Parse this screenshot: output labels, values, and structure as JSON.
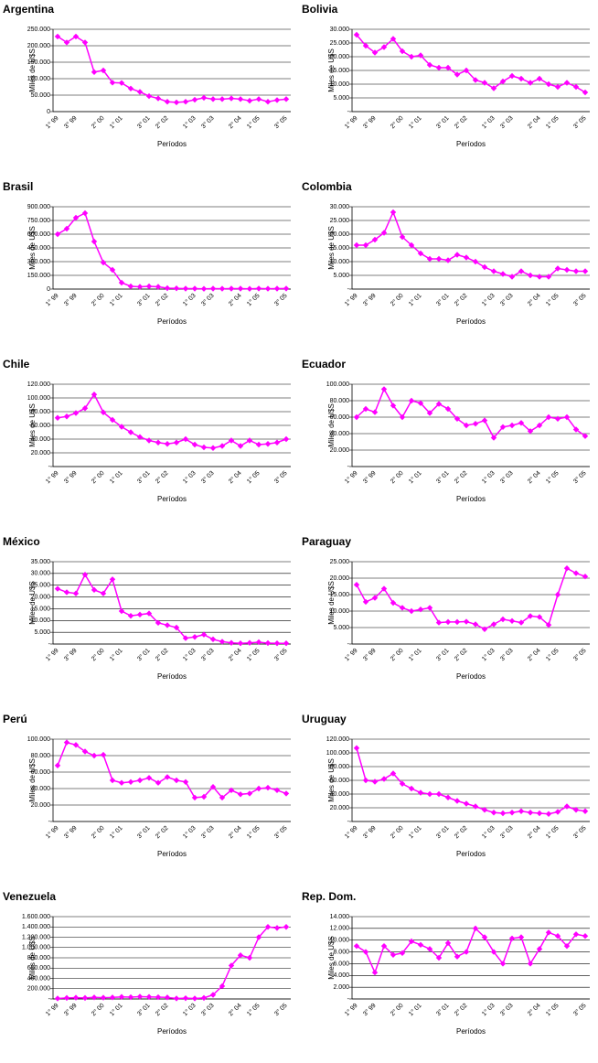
{
  "chart_data": [
    {
      "type": "line",
      "title": "Argentina",
      "y_label": "Miles de U$S",
      "x_label": "Períodos",
      "color": "#ff00ff",
      "grid": true,
      "categories": [
        "1° 99",
        null,
        "3° 99",
        null,
        null,
        "2° 00",
        null,
        "1° 01",
        null,
        null,
        "3° 01",
        null,
        "2° 02",
        null,
        null,
        "1° 03",
        null,
        "3° 03",
        null,
        null,
        "2° 04",
        null,
        "1° 05",
        null,
        null,
        "3° 05"
      ],
      "values": [
        228000,
        210000,
        228000,
        210000,
        120000,
        125000,
        88000,
        87000,
        70000,
        60000,
        47000,
        40000,
        30000,
        28000,
        30000,
        36000,
        42000,
        38000,
        38000,
        40000,
        38000,
        33000,
        38000,
        30000,
        35000,
        38000
      ],
      "ylim": [
        0,
        250000
      ],
      "yticks": [
        0,
        {
          "value": 50000,
          "label": "50.000"
        },
        {
          "value": 100000,
          "label": "100.000"
        },
        {
          "value": 150000,
          "label": "150.000"
        },
        {
          "value": 200000,
          "label": "200.000"
        },
        {
          "value": 250000,
          "label": "250.000"
        }
      ]
    },
    {
      "type": "line",
      "title": "Bolivia",
      "y_label": "Miles de U$S",
      "x_label": "Períodos",
      "color": "#ff00ff",
      "grid": true,
      "categories": [
        "1° 99",
        null,
        "3° 99",
        null,
        null,
        "2° 00",
        null,
        "1° 01",
        null,
        null,
        "3° 01",
        null,
        "2° 02",
        null,
        null,
        "1° 03",
        null,
        "3° 03",
        null,
        null,
        "2° 04",
        null,
        "1° 05",
        null,
        null,
        "3° 05"
      ],
      "values": [
        28000,
        24000,
        21500,
        23500,
        26500,
        22000,
        20000,
        20500,
        17000,
        16000,
        16000,
        13500,
        15000,
        11500,
        10500,
        8500,
        11000,
        13000,
        12000,
        10500,
        12000,
        10000,
        9000,
        10500,
        9000,
        7000
      ],
      "ylim": [
        0,
        30000
      ],
      "yticks": [
        {
          "value": 0,
          "label": "-"
        },
        {
          "value": 5000,
          "label": "5.000"
        },
        {
          "value": 10000,
          "label": "10.000"
        },
        {
          "value": 15000,
          "label": "15.000"
        },
        {
          "value": 20000,
          "label": "20.000"
        },
        {
          "value": 25000,
          "label": "25.000"
        },
        {
          "value": 30000,
          "label": "30.000"
        }
      ]
    },
    {
      "type": "line",
      "title": "Brasil",
      "y_label": "Miles de U$S",
      "x_label": "Períodos",
      "color": "#ff00ff",
      "grid": true,
      "categories": [
        "1° 99",
        null,
        "3° 99",
        null,
        null,
        "2° 00",
        null,
        "1° 01",
        null,
        null,
        "3° 01",
        null,
        "2° 02",
        null,
        null,
        "1° 03",
        null,
        "3° 03",
        null,
        null,
        "2° 04",
        null,
        "1° 05",
        null,
        null,
        "3° 05"
      ],
      "values": [
        600000,
        660000,
        780000,
        830000,
        520000,
        290000,
        210000,
        70000,
        30000,
        25000,
        30000,
        25000,
        10000,
        8000,
        5000,
        5000,
        3000,
        5000,
        4000,
        5000,
        5000,
        3000,
        6000,
        4000,
        5000,
        6000
      ],
      "ylim": [
        0,
        900000
      ],
      "yticks": [
        0,
        {
          "value": 150000,
          "label": "150.000"
        },
        {
          "value": 300000,
          "label": "300.000"
        },
        {
          "value": 450000,
          "label": "450.000"
        },
        {
          "value": 600000,
          "label": "600.000"
        },
        {
          "value": 750000,
          "label": "750.000"
        },
        {
          "value": 900000,
          "label": "900.000"
        }
      ]
    },
    {
      "type": "line",
      "title": "Colombia",
      "y_label": "Miles de U$S",
      "x_label": "Períodos",
      "color": "#ff00ff",
      "grid": true,
      "categories": [
        "1° 99",
        null,
        "3° 99",
        null,
        null,
        "2° 00",
        null,
        "1° 01",
        null,
        null,
        "3° 01",
        null,
        "2° 02",
        null,
        null,
        "1° 03",
        null,
        "3° 03",
        null,
        null,
        "2° 04",
        null,
        "1° 05",
        null,
        null,
        "3° 05"
      ],
      "values": [
        16000,
        16000,
        18000,
        20500,
        28000,
        19000,
        16000,
        13000,
        11000,
        11000,
        10500,
        12500,
        11500,
        10000,
        8000,
        6500,
        5500,
        4500,
        6500,
        5000,
        4500,
        4500,
        7500,
        7000,
        6500,
        6500
      ],
      "ylim": [
        0,
        30000
      ],
      "yticks": [
        {
          "value": 0,
          "label": "-"
        },
        {
          "value": 5000,
          "label": "5.000"
        },
        {
          "value": 10000,
          "label": "10.000"
        },
        {
          "value": 15000,
          "label": "15.000"
        },
        {
          "value": 20000,
          "label": "20.000"
        },
        {
          "value": 25000,
          "label": "25.000"
        },
        {
          "value": 30000,
          "label": "30.000"
        }
      ]
    },
    {
      "type": "line",
      "title": "Chile",
      "y_label": "Miles de U$S",
      "x_label": "Períodos",
      "color": "#ff00ff",
      "grid": true,
      "categories": [
        "1° 99",
        null,
        "3° 99",
        null,
        null,
        "2° 00",
        null,
        "1° 01",
        null,
        null,
        "3° 01",
        null,
        "2° 02",
        null,
        null,
        "1° 03",
        null,
        "3° 03",
        null,
        null,
        "2° 04",
        null,
        "1° 05",
        null,
        null,
        "3° 05"
      ],
      "values": [
        71000,
        73000,
        78000,
        85000,
        105000,
        79000,
        68000,
        58000,
        50000,
        43000,
        38000,
        35000,
        33000,
        35000,
        40000,
        32000,
        28000,
        27000,
        30000,
        38000,
        30000,
        38000,
        32000,
        33000,
        35000,
        40000
      ],
      "ylim": [
        0,
        120000
      ],
      "yticks": [
        {
          "value": 0,
          "label": "-"
        },
        {
          "value": 20000,
          "label": "20.000"
        },
        {
          "value": 40000,
          "label": "40.000"
        },
        {
          "value": 60000,
          "label": "60.000"
        },
        {
          "value": 80000,
          "label": "80.000"
        },
        {
          "value": 100000,
          "label": "100.000"
        },
        {
          "value": 120000,
          "label": "120.000"
        }
      ]
    },
    {
      "type": "line",
      "title": "Ecuador",
      "y_label": "Miles de U$S",
      "x_label": "Períodos",
      "color": "#ff00ff",
      "grid": true,
      "categories": [
        "1° 99",
        null,
        "3° 99",
        null,
        null,
        "2° 00",
        null,
        "1° 01",
        null,
        null,
        "3° 01",
        null,
        "2° 02",
        null,
        null,
        "1° 03",
        null,
        "3° 03",
        null,
        null,
        "2° 04",
        null,
        "1° 05",
        null,
        null,
        "3° 05"
      ],
      "values": [
        60000,
        70000,
        66000,
        94000,
        74000,
        60000,
        80000,
        77000,
        65000,
        76000,
        70000,
        58000,
        50000,
        52000,
        56000,
        35000,
        48000,
        50000,
        53000,
        43000,
        50000,
        60000,
        58000,
        60000,
        45000,
        37000
      ],
      "ylim": [
        0,
        100000
      ],
      "yticks": [
        {
          "value": 0,
          "label": "-"
        },
        {
          "value": 20000,
          "label": "20.000"
        },
        {
          "value": 40000,
          "label": "40.000"
        },
        {
          "value": 60000,
          "label": "60.000"
        },
        {
          "value": 80000,
          "label": "80.000"
        },
        {
          "value": 100000,
          "label": "100.000"
        }
      ]
    },
    {
      "type": "line",
      "title": "México",
      "y_label": "Miles de U$S",
      "x_label": "Períodos",
      "color": "#ff00ff",
      "grid": true,
      "categories": [
        "1° 99",
        null,
        "3° 99",
        null,
        null,
        "2° 00",
        null,
        "1° 01",
        null,
        null,
        "3° 01",
        null,
        "2° 02",
        null,
        null,
        "1° 03",
        null,
        "3° 03",
        null,
        null,
        "2° 04",
        null,
        "1° 05",
        null,
        null,
        "3° 05"
      ],
      "values": [
        23500,
        22000,
        21500,
        29500,
        23000,
        21500,
        27500,
        14000,
        12000,
        12500,
        13000,
        9000,
        8000,
        7000,
        2500,
        3000,
        4000,
        2000,
        1000,
        500,
        300,
        500,
        800,
        400,
        300,
        300
      ],
      "ylim": [
        0,
        35000
      ],
      "yticks": [
        {
          "value": 0,
          "label": "-"
        },
        {
          "value": 5000,
          "label": "5.000"
        },
        {
          "value": 10000,
          "label": "10.000"
        },
        {
          "value": 15000,
          "label": "15.000"
        },
        {
          "value": 20000,
          "label": "20.000"
        },
        {
          "value": 25000,
          "label": "25.000"
        },
        {
          "value": 30000,
          "label": "30.000"
        },
        {
          "value": 35000,
          "label": "35.000"
        }
      ]
    },
    {
      "type": "line",
      "title": "Paraguay",
      "y_label": "Miles de U$S",
      "x_label": "Períodos",
      "color": "#ff00ff",
      "grid": true,
      "categories": [
        "1° 99",
        null,
        "3° 99",
        null,
        null,
        "2° 00",
        null,
        "1° 01",
        null,
        null,
        "3° 01",
        null,
        "2° 02",
        null,
        null,
        "1° 03",
        null,
        "3° 03",
        null,
        null,
        "2° 04",
        null,
        "1° 05",
        null,
        null,
        "3° 05"
      ],
      "values": [
        18000,
        12800,
        14000,
        16800,
        12500,
        11000,
        10000,
        10500,
        11000,
        6500,
        6700,
        6700,
        6800,
        6000,
        4500,
        6000,
        7500,
        7000,
        6500,
        8500,
        8200,
        5800,
        15000,
        23000,
        21500,
        20500
      ],
      "ylim": [
        0,
        25000
      ],
      "yticks": [
        {
          "value": 0,
          "label": "-"
        },
        {
          "value": 5000,
          "label": "5.000"
        },
        {
          "value": 10000,
          "label": "10.000"
        },
        {
          "value": 15000,
          "label": "15.000"
        },
        {
          "value": 20000,
          "label": "20.000"
        },
        {
          "value": 25000,
          "label": "25.000"
        }
      ]
    },
    {
      "type": "line",
      "title": "Perú",
      "y_label": "Miles de U$S",
      "x_label": "Períodos",
      "color": "#ff00ff",
      "grid": true,
      "categories": [
        "1° 99",
        null,
        "3° 99",
        null,
        null,
        "2° 00",
        null,
        "1° 01",
        null,
        null,
        "3° 01",
        null,
        "2° 02",
        null,
        null,
        "1° 03",
        null,
        "3° 03",
        null,
        null,
        "2° 04",
        null,
        "1° 05",
        null,
        null,
        "3° 05"
      ],
      "values": [
        68000,
        96000,
        93000,
        85000,
        80000,
        81000,
        50000,
        47000,
        48000,
        50000,
        53000,
        47000,
        54000,
        50000,
        48000,
        29000,
        30000,
        42000,
        29000,
        38000,
        33000,
        34000,
        40000,
        41000,
        38000,
        34000
      ],
      "ylim": [
        0,
        100000
      ],
      "yticks": [
        {
          "value": 0,
          "label": "-"
        },
        {
          "value": 20000,
          "label": "20.000"
        },
        {
          "value": 40000,
          "label": "40.000"
        },
        {
          "value": 60000,
          "label": "60.000"
        },
        {
          "value": 80000,
          "label": "80.000"
        },
        {
          "value": 100000,
          "label": "100.000"
        }
      ]
    },
    {
      "type": "line",
      "title": "Uruguay",
      "y_label": "Miles de U$S",
      "x_label": "Períodos",
      "color": "#ff00ff",
      "grid": true,
      "categories": [
        "1° 99",
        null,
        "3° 99",
        null,
        null,
        "2° 00",
        null,
        "1° 01",
        null,
        null,
        "3° 01",
        null,
        "2° 02",
        null,
        null,
        "1° 03",
        null,
        "3° 03",
        null,
        null,
        "2° 04",
        null,
        "1° 05",
        null,
        null,
        "3° 05"
      ],
      "values": [
        107000,
        60000,
        58000,
        62000,
        70000,
        55000,
        48000,
        42000,
        40000,
        40000,
        35000,
        30000,
        26000,
        22000,
        17000,
        13000,
        12000,
        13000,
        15000,
        13000,
        12000,
        11000,
        14000,
        22000,
        17000,
        15000
      ],
      "ylim": [
        0,
        120000
      ],
      "yticks": [
        {
          "value": 0,
          "label": "-"
        },
        {
          "value": 20000,
          "label": "20.000"
        },
        {
          "value": 40000,
          "label": "40.000"
        },
        {
          "value": 60000,
          "label": "60.000"
        },
        {
          "value": 80000,
          "label": "80.000"
        },
        {
          "value": 100000,
          "label": "100.000"
        },
        {
          "value": 120000,
          "label": "120.000"
        }
      ]
    },
    {
      "type": "line",
      "title": "Venezuela",
      "y_label": "Miles de U$S",
      "x_label": "Períodos",
      "color": "#ff00ff",
      "grid": true,
      "categories": [
        "1° 99",
        null,
        "3° 99",
        null,
        null,
        "2° 00",
        null,
        "1° 01",
        null,
        null,
        "3° 01",
        null,
        "2° 02",
        null,
        null,
        "1° 03",
        null,
        "3° 03",
        null,
        null,
        "2° 04",
        null,
        "1° 05",
        null,
        null,
        "3° 05"
      ],
      "values": [
        10000,
        20000,
        25000,
        20000,
        30000,
        25000,
        30000,
        40000,
        35000,
        45000,
        40000,
        35000,
        30000,
        10000,
        15000,
        10000,
        20000,
        80000,
        250000,
        650000,
        850000,
        800000,
        1200000,
        1400000,
        1380000,
        1400000
      ],
      "ylim": [
        0,
        1600000
      ],
      "yticks": [
        {
          "value": 0,
          "label": "-"
        },
        {
          "value": 200000,
          "label": "200.000"
        },
        {
          "value": 400000,
          "label": "400.000"
        },
        {
          "value": 600000,
          "label": "600.000"
        },
        {
          "value": 800000,
          "label": "800.000"
        },
        {
          "value": 1000000,
          "label": "1.000.000"
        },
        {
          "value": 1200000,
          "label": "1.200.000"
        },
        {
          "value": 1400000,
          "label": "1.400.000"
        },
        {
          "value": 1600000,
          "label": "1.600.000"
        }
      ]
    },
    {
      "type": "line",
      "title": "Rep. Dom.",
      "y_label": "Miles de U$S",
      "x_label": "Períodos",
      "color": "#ff00ff",
      "grid": true,
      "categories": [
        "1° 99",
        null,
        "3° 99",
        null,
        null,
        "2° 00",
        null,
        "1° 01",
        null,
        null,
        "3° 01",
        null,
        "2° 02",
        null,
        null,
        "1° 03",
        null,
        "3° 03",
        null,
        null,
        "2° 04",
        null,
        "1° 05",
        null,
        null,
        "3° 05"
      ],
      "values": [
        9000,
        8000,
        4500,
        9000,
        7500,
        7800,
        9800,
        9200,
        8500,
        7000,
        9500,
        7200,
        8000,
        12000,
        10500,
        8000,
        6000,
        10300,
        10500,
        6000,
        8500,
        11300,
        10700,
        9000,
        11000,
        10700
      ],
      "ylim": [
        0,
        14000
      ],
      "yticks": [
        {
          "value": 0,
          "label": "-"
        },
        {
          "value": 2000,
          "label": "2.000"
        },
        {
          "value": 4000,
          "label": "4.000"
        },
        {
          "value": 6000,
          "label": "6.000"
        },
        {
          "value": 8000,
          "label": "8.000"
        },
        {
          "value": 10000,
          "label": "10.000"
        },
        {
          "value": 12000,
          "label": "12.000"
        },
        {
          "value": 14000,
          "label": "14.000"
        }
      ]
    }
  ]
}
